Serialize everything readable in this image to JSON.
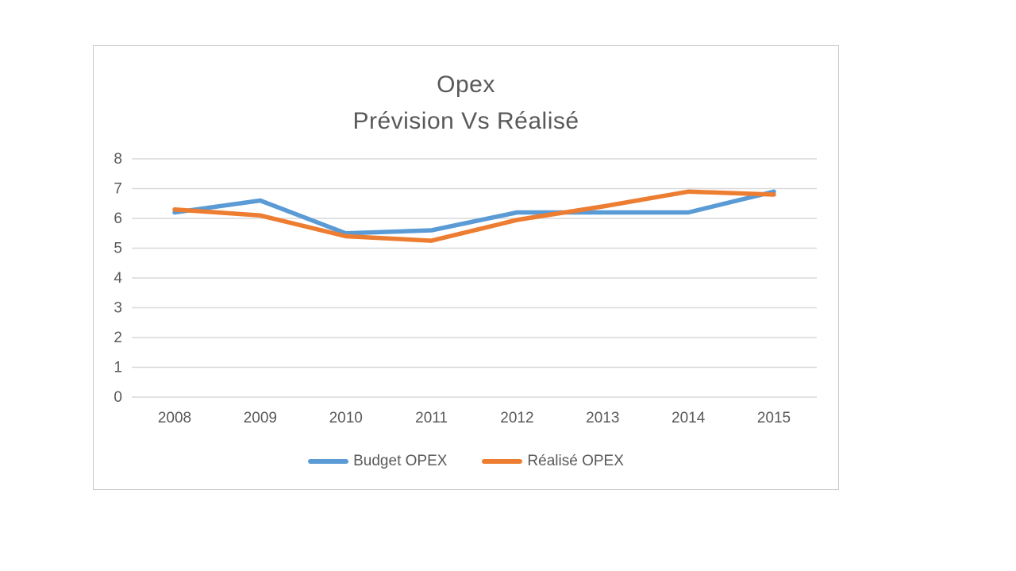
{
  "chart_data": {
    "type": "line",
    "title": "Opex Prévision Vs Réalisé",
    "title_lines": [
      "Opex",
      "Prévision Vs Réalisé"
    ],
    "categories": [
      "2008",
      "2009",
      "2010",
      "2011",
      "2012",
      "2013",
      "2014",
      "2015"
    ],
    "series": [
      {
        "name": "Budget OPEX",
        "color": "#5B9BD5",
        "values": [
          6.2,
          6.6,
          5.5,
          5.6,
          6.2,
          6.2,
          6.2,
          6.9
        ]
      },
      {
        "name": "Réalisé OPEX",
        "color": "#ED7D31",
        "values": [
          6.3,
          6.1,
          5.4,
          5.25,
          5.95,
          6.4,
          6.9,
          6.8
        ]
      }
    ],
    "xlabel": "",
    "ylabel": "",
    "ylim": [
      0,
      8
    ],
    "yticks": [
      0,
      1,
      2,
      3,
      4,
      5,
      6,
      7,
      8
    ],
    "grid": "horizontal-only",
    "legend_position": "bottom"
  },
  "style": {
    "grid_color": "#d9d9d9",
    "axis_text_color": "#595959",
    "title_color": "#595959",
    "frame_border_color": "#c9c9c9",
    "background": "#ffffff"
  }
}
